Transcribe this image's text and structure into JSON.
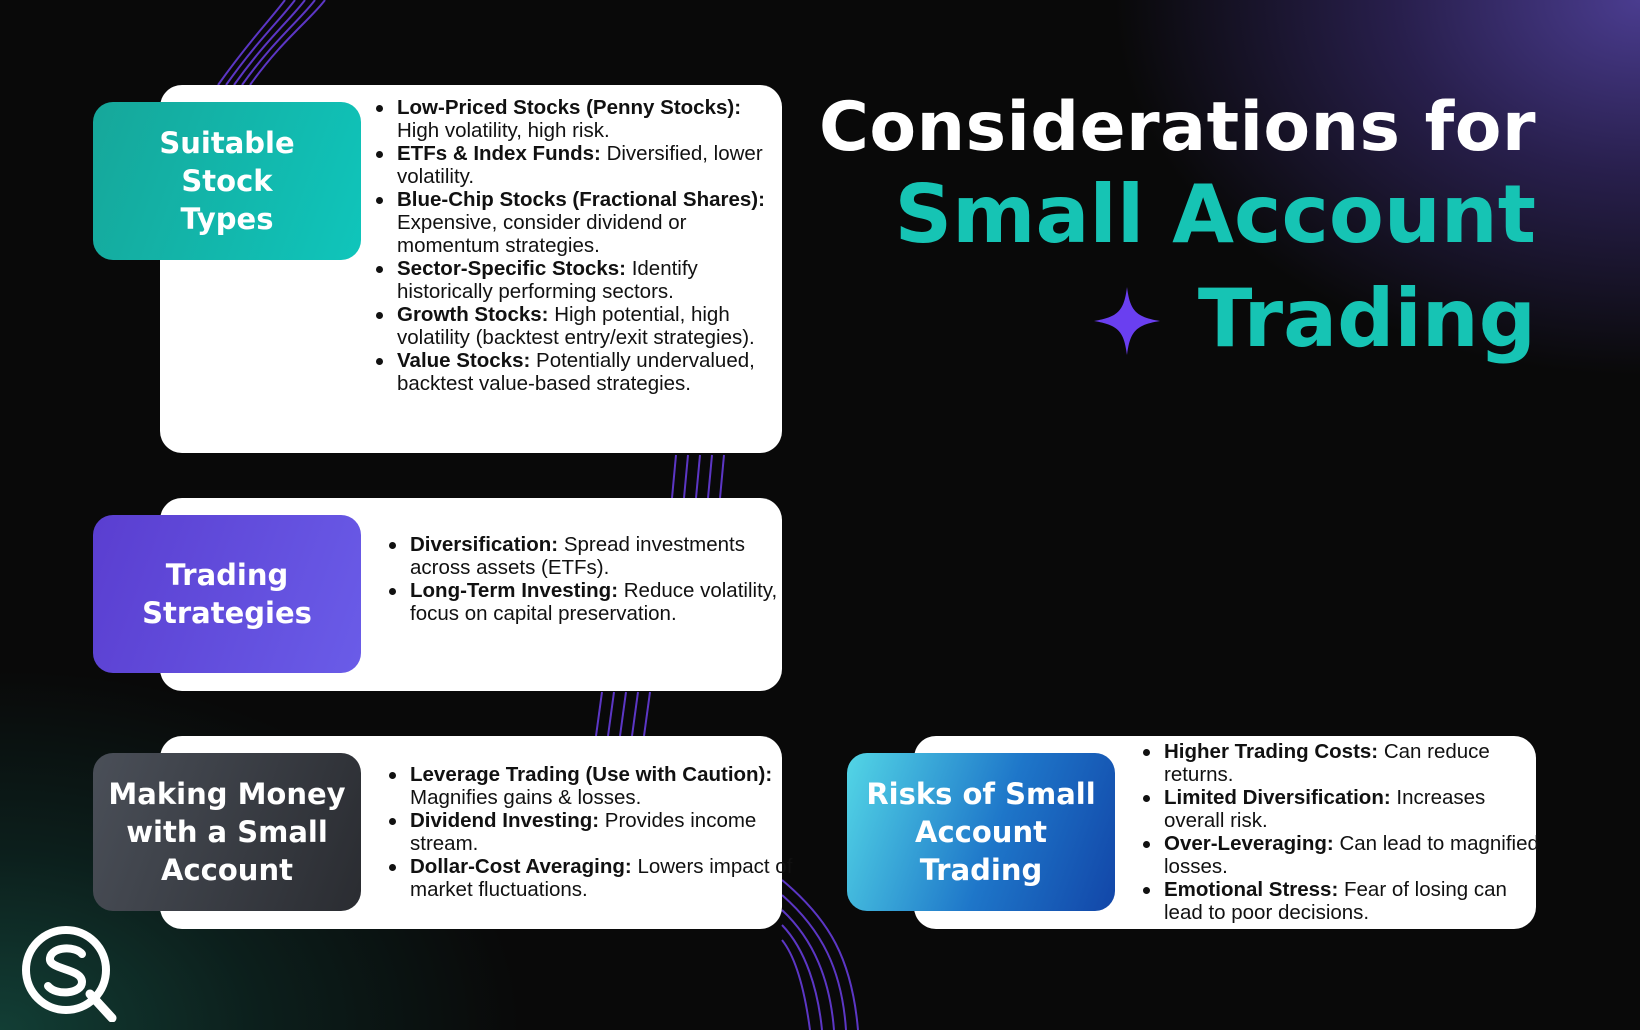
{
  "title": {
    "line1": "Considerations for",
    "line2": "Small Account",
    "line3": "Trading"
  },
  "colors": {
    "accent_teal": "#16c4b4",
    "accent_purple": "#6a3ff0",
    "background": "#090909"
  },
  "icons": {
    "sparkle": "four-point-star-icon",
    "logo": "sq-logo-icon"
  },
  "sections": [
    {
      "label": "Suitable\nStock\nTypes",
      "items": [
        {
          "term": "Low-Priced Stocks (Penny Stocks):",
          "desc": "High volatility, high risk."
        },
        {
          "term": "ETFs & Index Funds:",
          "desc": "Diversified, lower volatility."
        },
        {
          "term": "Blue-Chip Stocks (Fractional Shares):",
          "desc": "Expensive, consider dividend or momentum strategies."
        },
        {
          "term": "Sector-Specific Stocks:",
          "desc": "Identify historically performing sectors."
        },
        {
          "term": "Growth Stocks:",
          "desc": "High potential, high volatility (backtest entry/exit strategies)."
        },
        {
          "term": "Value Stocks:",
          "desc": "Potentially undervalued, backtest value-based strategies."
        }
      ]
    },
    {
      "label": "Trading\nStrategies",
      "items": [
        {
          "term": "Diversification:",
          "desc": "Spread investments across assets (ETFs)."
        },
        {
          "term": "Long-Term Investing:",
          "desc": "Reduce volatility, focus on capital preservation."
        }
      ]
    },
    {
      "label": "Making Money\nwith a Small\nAccount",
      "items": [
        {
          "term": "Leverage Trading (Use with Caution):",
          "desc": "Magnifies gains & losses."
        },
        {
          "term": "Dividend Investing:",
          "desc": "Provides income stream."
        },
        {
          "term": "Dollar-Cost Averaging:",
          "desc": "Lowers impact of market fluctuations."
        }
      ]
    },
    {
      "label": "Risks of Small\nAccount\nTrading",
      "items": [
        {
          "term": "Higher Trading Costs:",
          "desc": "Can reduce returns."
        },
        {
          "term": "Limited Diversification:",
          "desc": "Increases overall risk."
        },
        {
          "term": "Over-Leveraging:",
          "desc": "Can lead to magnified losses."
        },
        {
          "term": "Emotional Stress:",
          "desc": "Fear of losing can lead to poor decisions."
        }
      ]
    }
  ]
}
